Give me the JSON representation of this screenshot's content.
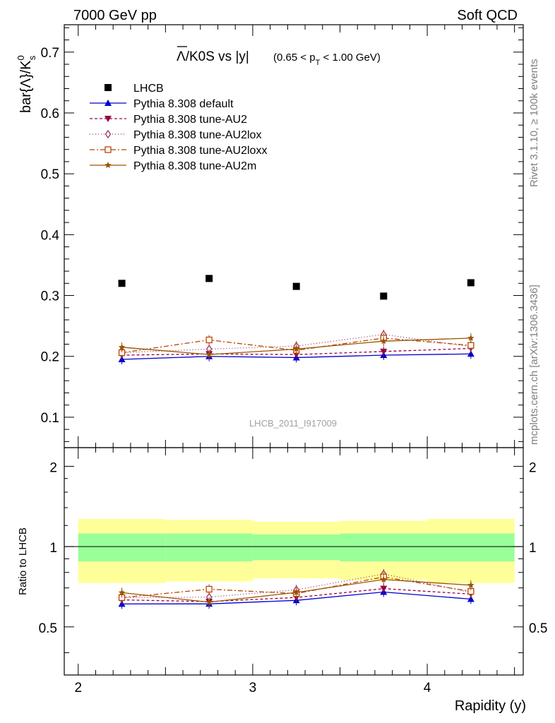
{
  "header": {
    "left": "7000 GeV pp",
    "right": "Soft QCD"
  },
  "side_labels": {
    "rivet": "Rivet 3.1.10, ≥ 100k events",
    "mcplots": "mcplots.cern.ch [arXiv:1306.3436]"
  },
  "watermark": "LHCB_2011_I917009",
  "chart_data": {
    "type": "scatter",
    "title_main": "Λ/K0S vs |y|",
    "title_overline": "Λ",
    "title_rest": "/K0S vs |y|",
    "title_range_pre": "(0.65 < p",
    "title_range_sub": "T",
    "title_range_post": " < 1.00 GeV)",
    "ylabel_main": "bar{Λ}/K",
    "ylabel_sup": "0",
    "ylabel_sub": "s",
    "xlabel": "Rapidity (y)",
    "ratio_ylabel": "Ratio to LHCB",
    "xlim": [
      1.92,
      4.55
    ],
    "ylim": [
      0.05,
      0.745
    ],
    "ratio_ylim": [
      0.33,
      2.35
    ],
    "x_ticks": [
      2,
      3,
      4
    ],
    "x_tick_labels": [
      "2",
      "3",
      "4"
    ],
    "y_ticks": [
      0.1,
      0.2,
      0.3,
      0.4,
      0.5,
      0.6,
      0.7
    ],
    "y_tick_labels": [
      "0.1",
      "0.2",
      "0.3",
      "0.4",
      "0.5",
      "0.6",
      "0.7"
    ],
    "ratio_ticks": [
      0.5,
      1,
      2
    ],
    "ratio_tick_labels": [
      "0.5",
      "1",
      "2"
    ],
    "x": [
      2.25,
      2.75,
      3.25,
      3.75,
      4.25
    ],
    "bin_edges": [
      2.0,
      2.5,
      3.0,
      3.5,
      4.0,
      4.5
    ],
    "data": {
      "name": "LHCB",
      "values": [
        0.32,
        0.328,
        0.315,
        0.299,
        0.321
      ],
      "band_inner": [
        0.12,
        0.12,
        0.11,
        0.12,
        0.12
      ],
      "band_outer": [
        0.27,
        0.26,
        0.24,
        0.25,
        0.27
      ]
    },
    "series": [
      {
        "name": "Pythia 8.308 default",
        "color": "#0000cc",
        "dash": "",
        "marker": "triangle-up",
        "values": [
          0.195,
          0.2,
          0.198,
          0.202,
          0.204
        ]
      },
      {
        "name": "Pythia 8.308 tune-AU2",
        "color": "#990044",
        "dash": "4,3",
        "marker": "triangle-down",
        "values": [
          0.202,
          0.204,
          0.203,
          0.208,
          0.213
        ]
      },
      {
        "name": "Pythia 8.308 tune-AU2lox",
        "color": "#993366",
        "dash": "1,3",
        "marker": "diamond-open",
        "values": [
          0.206,
          0.212,
          0.217,
          0.236,
          0.216
        ]
      },
      {
        "name": "Pythia 8.308 tune-AU2loxx",
        "color": "#bb4400",
        "dash": "7,3,2,3",
        "marker": "square-open",
        "values": [
          0.206,
          0.227,
          0.21,
          0.23,
          0.218
        ]
      },
      {
        "name": "Pythia 8.308 tune-AU2m",
        "color": "#995500",
        "dash": "",
        "marker": "star",
        "values": [
          0.215,
          0.203,
          0.212,
          0.225,
          0.23
        ]
      }
    ],
    "legend_position": "top-left"
  }
}
